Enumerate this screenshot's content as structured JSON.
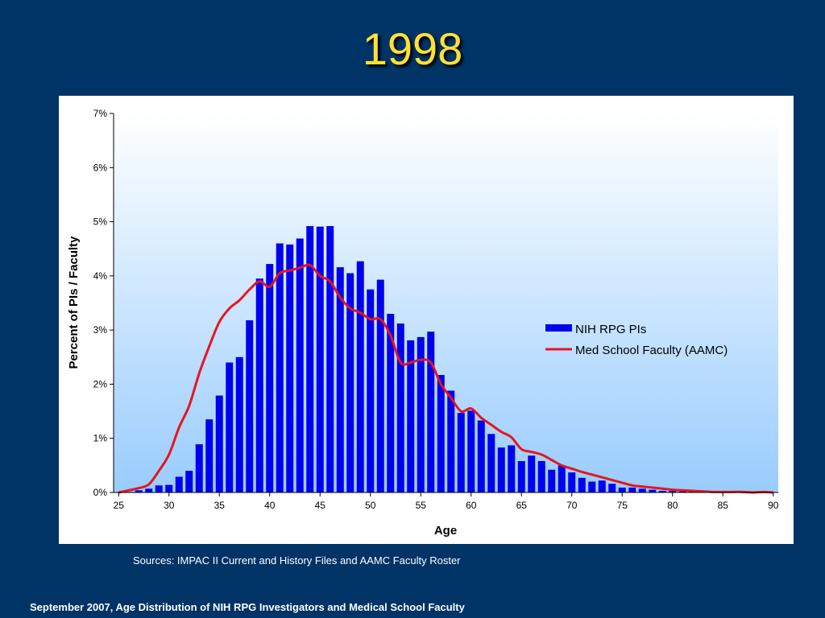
{
  "slide": {
    "title": "1998",
    "sources": "Sources:  IMPAC II Current and History Files and AAMC Faculty Roster",
    "footer": "September 2007, Age Distribution of NIH RPG Investigators and Medical School Faculty"
  },
  "colors": {
    "background": "#003366",
    "title": "#FFE135",
    "bar": "#0000EE",
    "line": "#E8141E",
    "plot_gradient_top": "#FFFFFF",
    "plot_gradient_bottom": "#99CCFF"
  },
  "chart_data": {
    "type": "bar",
    "title": "",
    "xlabel": "Age",
    "ylabel": "Percent of PIs / Faculty",
    "xlim": [
      25,
      90
    ],
    "ylim": [
      0,
      7
    ],
    "x_ticks": [
      "25",
      "30",
      "35",
      "40",
      "45",
      "50",
      "55",
      "60",
      "65",
      "70",
      "75",
      "80",
      "85",
      "90"
    ],
    "y_ticks": [
      "0%",
      "1%",
      "2%",
      "3%",
      "4%",
      "5%",
      "6%",
      "7%"
    ],
    "grid": false,
    "legend_position": "right",
    "x": [
      25,
      26,
      27,
      28,
      29,
      30,
      31,
      32,
      33,
      34,
      35,
      36,
      37,
      38,
      39,
      40,
      41,
      42,
      43,
      44,
      45,
      46,
      47,
      48,
      49,
      50,
      51,
      52,
      53,
      54,
      55,
      56,
      57,
      58,
      59,
      60,
      61,
      62,
      63,
      64,
      65,
      66,
      67,
      68,
      69,
      70,
      71,
      72,
      73,
      74,
      75,
      76,
      77,
      78,
      79,
      80,
      81,
      82,
      83,
      84,
      85,
      86,
      87,
      88,
      89,
      90
    ],
    "series": [
      {
        "name": "NIH RPG PIs",
        "type": "bar",
        "values": [
          0,
          0.01,
          0.04,
          0.07,
          0.13,
          0.14,
          0.29,
          0.4,
          0.89,
          1.35,
          1.79,
          2.4,
          2.5,
          3.18,
          3.95,
          4.22,
          4.6,
          4.58,
          4.69,
          4.92,
          4.91,
          4.92,
          4.16,
          4.05,
          4.27,
          3.75,
          3.93,
          3.3,
          3.12,
          2.81,
          2.87,
          2.97,
          2.17,
          1.88,
          1.47,
          1.51,
          1.33,
          1.08,
          0.83,
          0.87,
          0.58,
          0.68,
          0.58,
          0.42,
          0.5,
          0.37,
          0.27,
          0.2,
          0.22,
          0.16,
          0.09,
          0.09,
          0.07,
          0.05,
          0.03,
          0.03,
          0.02,
          0.02,
          0.01,
          0.01,
          0.01,
          0.01,
          0,
          0,
          0,
          0
        ]
      },
      {
        "name": "Med School Faculty (AAMC)",
        "type": "line",
        "values": [
          0,
          0.04,
          0.08,
          0.15,
          0.4,
          0.7,
          1.2,
          1.6,
          2.2,
          2.7,
          3.15,
          3.4,
          3.55,
          3.75,
          3.9,
          3.8,
          4.05,
          4.1,
          4.15,
          4.2,
          4.0,
          3.9,
          3.6,
          3.4,
          3.32,
          3.2,
          3.2,
          2.9,
          2.4,
          2.4,
          2.45,
          2.4,
          2.0,
          1.75,
          1.5,
          1.55,
          1.38,
          1.25,
          1.12,
          1.02,
          0.8,
          0.75,
          0.7,
          0.6,
          0.5,
          0.44,
          0.38,
          0.33,
          0.28,
          0.23,
          0.18,
          0.13,
          0.11,
          0.09,
          0.07,
          0.05,
          0.04,
          0.03,
          0.02,
          0.01,
          0.01,
          0.01,
          0.01,
          0,
          0.01,
          0
        ]
      }
    ]
  }
}
